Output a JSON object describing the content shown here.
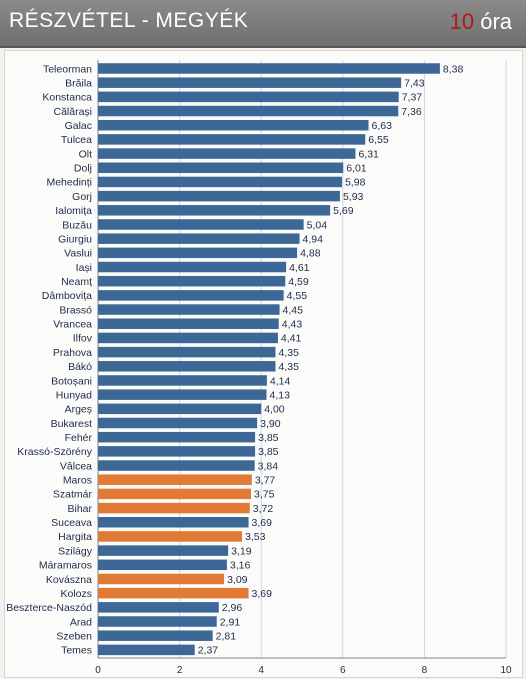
{
  "header": {
    "title": "RÉSZVÉTEL - MEGYÉK",
    "hours_value": "10",
    "hours_unit": "óra"
  },
  "colors": {
    "bar_default": "#3d6796",
    "bar_highlight": "#e07a35",
    "grid": "#cfd6df",
    "axis": "#7d8796"
  },
  "chart_data": {
    "type": "bar",
    "orientation": "horizontal",
    "categories": [
      "Teleorman",
      "Brăila",
      "Konstanca",
      "Călărași",
      "Galac",
      "Tulcea",
      "Olt",
      "Dolj",
      "Mehedinți",
      "Gorj",
      "Ialomița",
      "Buzău",
      "Giurgiu",
      "Vaslui",
      "Iași",
      "Neamț",
      "Dâmbovița",
      "Brassó",
      "Vrancea",
      "Ilfov",
      "Prahova",
      "Bákó",
      "Botoșani",
      "Hunyad",
      "Argeș",
      "Bukarest",
      "Fehér",
      "Krassó-Szörény",
      "Vâlcea",
      "Maros",
      "Szatmár",
      "Bihar",
      "Suceava",
      "Hargita",
      "Szilágy",
      "Máramaros",
      "Kovászna",
      "Kolozs",
      "Beszterce-Naszód",
      "Arad",
      "Szeben",
      "Temes"
    ],
    "values": [
      8.38,
      7.43,
      7.37,
      7.36,
      6.63,
      6.55,
      6.31,
      6.01,
      5.98,
      5.93,
      5.69,
      5.04,
      4.94,
      4.88,
      4.61,
      4.59,
      4.55,
      4.45,
      4.43,
      4.41,
      4.35,
      4.35,
      4.14,
      4.13,
      4.0,
      3.9,
      3.85,
      3.85,
      3.84,
      3.77,
      3.75,
      3.72,
      3.69,
      3.53,
      3.19,
      3.16,
      3.09,
      3.69,
      2.96,
      2.91,
      2.81,
      2.37
    ],
    "value_labels": [
      "8,38",
      "7,43",
      "7,37",
      "7,36",
      "6,63",
      "6,55",
      "6,31",
      "6,01",
      "5,98",
      "5,93",
      "5,69",
      "5,04",
      "4,94",
      "4,88",
      "4,61",
      "4,59",
      "4,55",
      "4,45",
      "4,43",
      "4,41",
      "4,35",
      "4,35",
      "4,14",
      "4,13",
      "4,00",
      "3,90",
      "3,85",
      "3,85",
      "3,84",
      "3,77",
      "3,75",
      "3,72",
      "3,69",
      "3,53",
      "3,19",
      "3,16",
      "3,09",
      "3,69",
      "2,96",
      "2,91",
      "2,81",
      "2,37"
    ],
    "highlighted": [
      "Maros",
      "Szatmár",
      "Bihar",
      "Hargita",
      "Kovászna",
      "Kolozs"
    ],
    "xlim": [
      0,
      10
    ],
    "xticks": [
      0,
      2,
      4,
      6,
      8,
      10
    ],
    "grid": true,
    "title": "",
    "xlabel": "",
    "ylabel": ""
  }
}
